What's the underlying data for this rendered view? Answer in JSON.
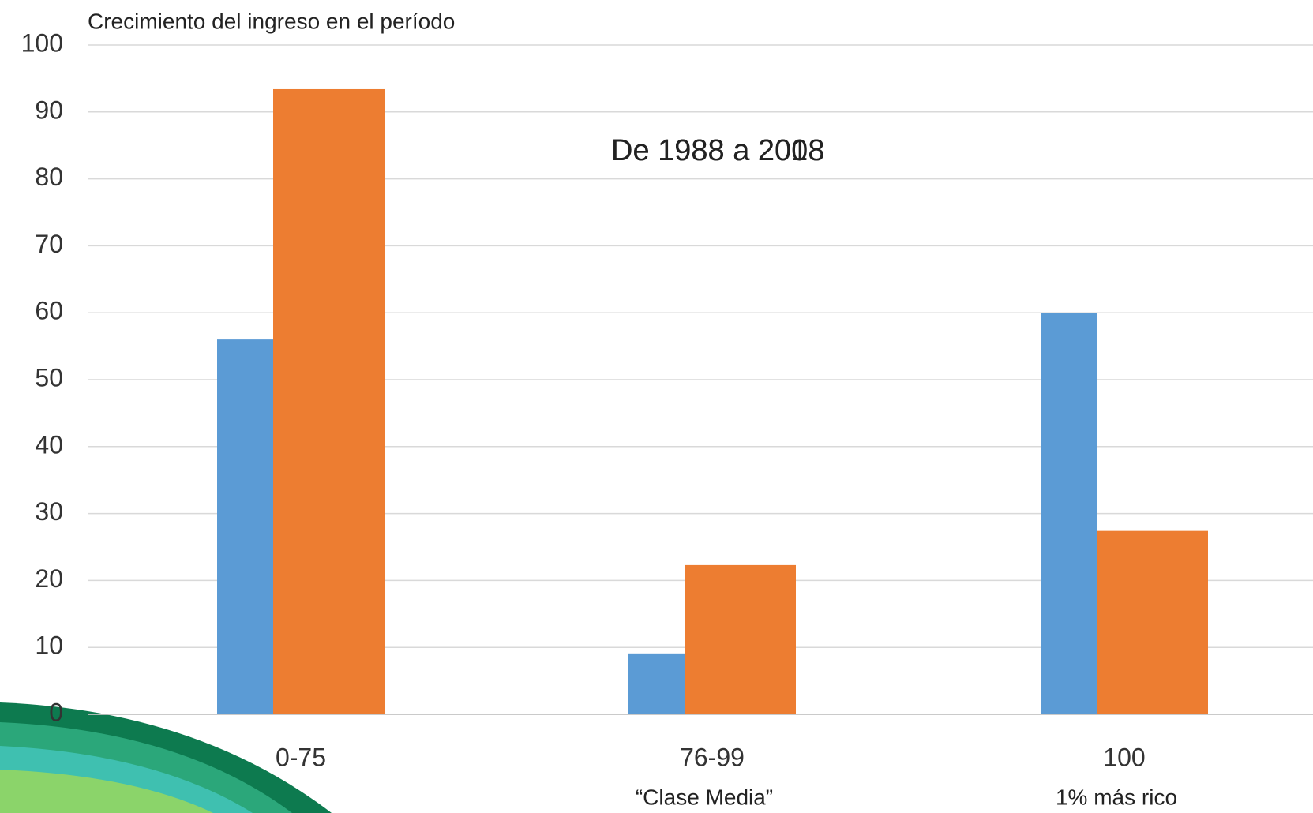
{
  "chart_data": {
    "type": "bar",
    "title": "Crecimiento del ingreso en el período",
    "annotations": [
      "De 1988 a 2008",
      "De 1988 a 2018"
    ],
    "categories": [
      "0-75",
      "76-99",
      "100"
    ],
    "category_notes": [
      null,
      "“Clase Media”",
      "1% más rico"
    ],
    "series": [
      {
        "color": "#5b9bd5",
        "values": [
          56,
          9.1,
          60
        ]
      },
      {
        "color": "#ed7d31",
        "values": [
          93.4,
          22.3,
          27.4
        ]
      }
    ],
    "ylim": [
      0,
      100
    ],
    "yticks": [
      0,
      10,
      20,
      30,
      40,
      50,
      60,
      70,
      80,
      90,
      100
    ],
    "grid": true
  }
}
